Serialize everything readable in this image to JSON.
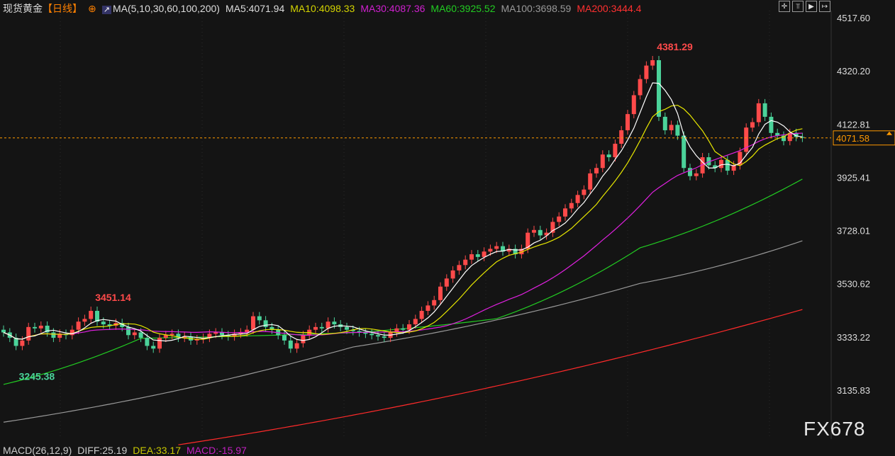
{
  "header": {
    "symbol": "现货黄金",
    "period": "【日线】",
    "ma_label": "MA(5,10,30,60,100,200)",
    "ma5": "MA5:4071.94",
    "ma10": "MA10:4098.33",
    "ma30": "MA30:4087.36",
    "ma60": "MA60:3925.52",
    "ma100": "MA100:3698.59",
    "ma200": "MA200:3444.4"
  },
  "toolbar": [
    {
      "icon": "crosshair-icon",
      "glyph": "✛"
    },
    {
      "icon": "zoom-in-icon",
      "glyph": "⫪"
    },
    {
      "icon": "play-icon",
      "glyph": "▶"
    },
    {
      "icon": "jump-end-icon",
      "glyph": "↦"
    }
  ],
  "macd": {
    "label": "MACD(26,12,9)",
    "diff": "DIFF:25.19",
    "dea": "DEA:33.17",
    "macd": "MACD:-15.97"
  },
  "watermark": "FX678",
  "colors": {
    "up": "#ff4a4a",
    "down": "#4bd39a",
    "ma5": "#ffffff",
    "ma10": "#e6e600",
    "ma30": "#e020e0",
    "ma60": "#22cc22",
    "ma100": "#999999",
    "ma200": "#ff2a2a",
    "current": "#ff9900"
  },
  "chart_data": {
    "type": "candlestick",
    "ylim": [
      3135.83,
      4517.6
    ],
    "y_ticks": [
      "4517.60",
      "4320.20",
      "4122.81",
      "3925.41",
      "3728.01",
      "3530.62",
      "3333.22",
      "3135.83"
    ],
    "current_price": "4071.58",
    "annotations": [
      {
        "index": 14,
        "value": 3451.14,
        "text": "3451.14"
      },
      {
        "index": 2,
        "value": 3245.38,
        "text": "3245.38"
      },
      {
        "index": 104,
        "value": 4381.29,
        "text": "4381.29"
      }
    ],
    "closes": [
      3350,
      3330,
      3300,
      3320,
      3370,
      3365,
      3375,
      3350,
      3330,
      3345,
      3340,
      3360,
      3390,
      3400,
      3430,
      3390,
      3380,
      3375,
      3385,
      3370,
      3340,
      3350,
      3330,
      3300,
      3290,
      3330,
      3340,
      3345,
      3330,
      3335,
      3320,
      3325,
      3330,
      3345,
      3350,
      3340,
      3335,
      3345,
      3350,
      3360,
      3410,
      3395,
      3370,
      3360,
      3340,
      3320,
      3290,
      3310,
      3340,
      3360,
      3370,
      3365,
      3390,
      3380,
      3370,
      3360,
      3355,
      3350,
      3345,
      3340,
      3335,
      3330,
      3350,
      3365,
      3360,
      3380,
      3400,
      3430,
      3450,
      3470,
      3520,
      3550,
      3580,
      3600,
      3620,
      3640,
      3630,
      3650,
      3660,
      3670,
      3650,
      3660,
      3640,
      3660,
      3720,
      3730,
      3710,
      3720,
      3760,
      3780,
      3810,
      3830,
      3860,
      3880,
      3940,
      3960,
      4010,
      4000,
      4050,
      4100,
      4160,
      4230,
      4290,
      4340,
      4360,
      4150,
      4100,
      4120,
      4080,
      3960,
      3930,
      3940,
      4000,
      3970,
      3960,
      3990,
      3950,
      3970,
      4020,
      4110,
      4130,
      4200,
      4150,
      4090,
      4080,
      4060,
      4090,
      4075,
      4072
    ],
    "ma60": [
      [
        0,
        3157
      ],
      [
        22,
        3328
      ],
      [
        56,
        3349
      ],
      [
        79,
        3401
      ],
      [
        102,
        3664
      ],
      [
        128,
        3919
      ]
    ],
    "ma100": [
      [
        0,
        3017
      ],
      [
        56,
        3296
      ],
      [
        102,
        3532
      ],
      [
        128,
        3690
      ]
    ],
    "ma200": [
      [
        28,
        2933
      ],
      [
        128,
        3435
      ]
    ]
  }
}
